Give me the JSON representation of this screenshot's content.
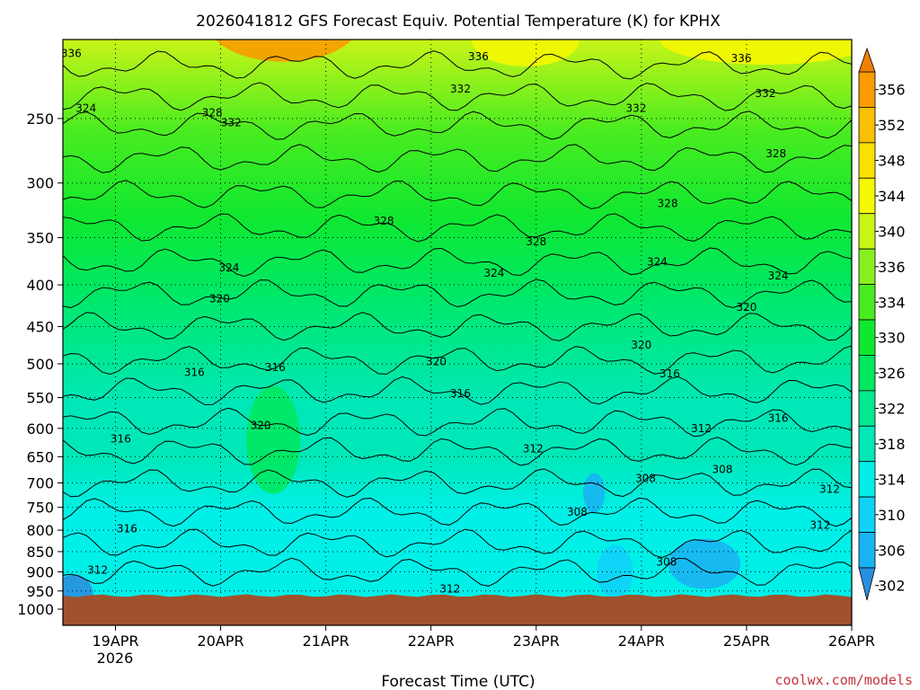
{
  "chart_data": {
    "type": "heatmap",
    "title": "2026041812 GFS Forecast Equiv. Potential Temperature (K) for KPHX",
    "xlabel": "Forecast Time (UTC)",
    "ylabel": "",
    "credit": "coolwx.com/models",
    "x_ticks": [
      "19APR",
      "20APR",
      "21APR",
      "22APR",
      "23APR",
      "24APR",
      "25APR",
      "26APR"
    ],
    "x_year": "2026",
    "x_range_days": [
      18.5,
      26.0
    ],
    "y_ticks": [
      250,
      300,
      350,
      400,
      450,
      500,
      550,
      600,
      650,
      700,
      750,
      800,
      850,
      900,
      950,
      1000
    ],
    "y_range_hpa": [
      200,
      1000
    ],
    "y_scale": "log-pressure, inverted",
    "grid": true,
    "colorbar": {
      "labels": [
        356,
        352,
        348,
        344,
        340,
        336,
        334,
        330,
        326,
        322,
        318,
        314,
        310,
        306,
        302
      ],
      "levels": [
        {
          "min": 298,
          "max": 302,
          "color": "#2a8fe0"
        },
        {
          "min": 302,
          "max": 306,
          "color": "#18b4f2"
        },
        {
          "min": 306,
          "max": 310,
          "color": "#10d2f8"
        },
        {
          "min": 310,
          "max": 314,
          "color": "#00f0e8"
        },
        {
          "min": 314,
          "max": 318,
          "color": "#00e8b8"
        },
        {
          "min": 318,
          "max": 322,
          "color": "#00e890"
        },
        {
          "min": 322,
          "max": 326,
          "color": "#00e860"
        },
        {
          "min": 326,
          "max": 330,
          "color": "#10e830"
        },
        {
          "min": 330,
          "max": 334,
          "color": "#48ec20"
        },
        {
          "min": 334,
          "max": 336,
          "color": "#88f020"
        },
        {
          "min": 336,
          "max": 340,
          "color": "#c8f418"
        },
        {
          "min": 340,
          "max": 344,
          "color": "#f4f800"
        },
        {
          "min": 344,
          "max": 348,
          "color": "#f8e000"
        },
        {
          "min": 348,
          "max": 352,
          "color": "#f8c000"
        },
        {
          "min": 352,
          "max": 356,
          "color": "#f89c00"
        },
        {
          "min": 356,
          "max": 360,
          "color": "#f08000"
        }
      ]
    },
    "contour_labels": [
      {
        "text": "336",
        "x": 18.58,
        "p": 208
      },
      {
        "text": "324",
        "x": 18.72,
        "p": 243
      },
      {
        "text": "328",
        "x": 19.92,
        "p": 246
      },
      {
        "text": "332",
        "x": 20.1,
        "p": 253
      },
      {
        "text": "336",
        "x": 22.45,
        "p": 210
      },
      {
        "text": "332",
        "x": 22.28,
        "p": 230
      },
      {
        "text": "336",
        "x": 24.95,
        "p": 211
      },
      {
        "text": "332",
        "x": 25.18,
        "p": 233
      },
      {
        "text": "332",
        "x": 23.95,
        "p": 243
      },
      {
        "text": "328",
        "x": 25.28,
        "p": 276
      },
      {
        "text": "328",
        "x": 24.25,
        "p": 318
      },
      {
        "text": "328",
        "x": 21.55,
        "p": 334
      },
      {
        "text": "328",
        "x": 23.0,
        "p": 354
      },
      {
        "text": "324",
        "x": 20.08,
        "p": 381
      },
      {
        "text": "324",
        "x": 22.6,
        "p": 387
      },
      {
        "text": "324",
        "x": 24.15,
        "p": 375
      },
      {
        "text": "324",
        "x": 25.3,
        "p": 390
      },
      {
        "text": "320",
        "x": 19.99,
        "p": 416
      },
      {
        "text": "320",
        "x": 25.0,
        "p": 426
      },
      {
        "text": "320",
        "x": 24.0,
        "p": 474
      },
      {
        "text": "320",
        "x": 22.05,
        "p": 497
      },
      {
        "text": "316",
        "x": 19.75,
        "p": 512
      },
      {
        "text": "316",
        "x": 20.52,
        "p": 505
      },
      {
        "text": "316",
        "x": 22.28,
        "p": 544
      },
      {
        "text": "316",
        "x": 24.27,
        "p": 514
      },
      {
        "text": "316",
        "x": 25.3,
        "p": 583
      },
      {
        "text": "316",
        "x": 19.05,
        "p": 618
      },
      {
        "text": "320",
        "x": 20.38,
        "p": 595
      },
      {
        "text": "312",
        "x": 22.97,
        "p": 636
      },
      {
        "text": "312",
        "x": 24.57,
        "p": 600
      },
      {
        "text": "308",
        "x": 24.04,
        "p": 691
      },
      {
        "text": "308",
        "x": 24.77,
        "p": 674
      },
      {
        "text": "312",
        "x": 25.79,
        "p": 713
      },
      {
        "text": "308",
        "x": 23.39,
        "p": 760
      },
      {
        "text": "316",
        "x": 19.11,
        "p": 797
      },
      {
        "text": "312",
        "x": 25.7,
        "p": 789
      },
      {
        "text": "308",
        "x": 24.24,
        "p": 875
      },
      {
        "text": "312",
        "x": 18.83,
        "p": 896
      },
      {
        "text": "312",
        "x": 22.18,
        "p": 945
      }
    ]
  }
}
